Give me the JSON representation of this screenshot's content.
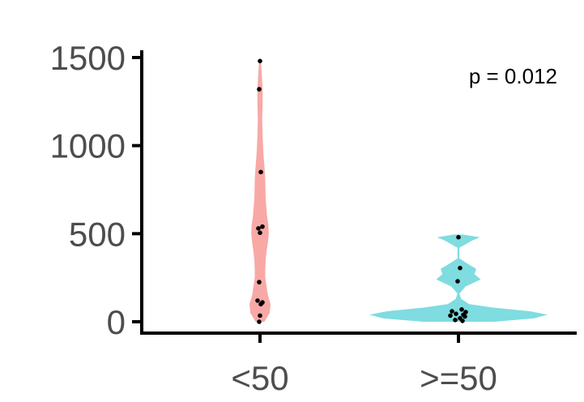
{
  "chart_data": {
    "type": "violin",
    "categories": [
      "<50",
      ">=50"
    ],
    "ylim": [
      -30,
      1560
    ],
    "yticks": [
      0,
      500,
      1000,
      1500
    ],
    "ytick_labels": [
      "0",
      "500",
      "1000",
      "1500"
    ],
    "annotation": "p = 0.012",
    "legend": "none",
    "grid": false,
    "series": [
      {
        "category": "<50",
        "color": "#f8a9a6",
        "points": [
          1480,
          1320,
          850,
          540,
          530,
          505,
          225,
          120,
          110,
          100,
          35,
          0
        ],
        "density_profile": [
          [
            0,
            0.1
          ],
          [
            50,
            0.22
          ],
          [
            100,
            0.24
          ],
          [
            150,
            0.18
          ],
          [
            200,
            0.15
          ],
          [
            250,
            0.12
          ],
          [
            300,
            0.12
          ],
          [
            350,
            0.13
          ],
          [
            400,
            0.15
          ],
          [
            450,
            0.18
          ],
          [
            500,
            0.2
          ],
          [
            550,
            0.19
          ],
          [
            600,
            0.16
          ],
          [
            700,
            0.13
          ],
          [
            800,
            0.12
          ],
          [
            850,
            0.11
          ],
          [
            950,
            0.08
          ],
          [
            1050,
            0.06
          ],
          [
            1150,
            0.05
          ],
          [
            1250,
            0.06
          ],
          [
            1320,
            0.06
          ],
          [
            1400,
            0.04
          ],
          [
            1480,
            0.02
          ]
        ]
      },
      {
        "category": ">=50",
        "color": "#7fdce0",
        "points": [
          480,
          305,
          230,
          70,
          60,
          55,
          45,
          40,
          35,
          30,
          20,
          10,
          5
        ],
        "density_profile": [
          [
            0,
            0.4
          ],
          [
            20,
            0.85
          ],
          [
            40,
            1.0
          ],
          [
            60,
            0.8
          ],
          [
            80,
            0.4
          ],
          [
            100,
            0.12
          ],
          [
            130,
            0.03
          ],
          [
            160,
            0.01
          ],
          [
            200,
            0.08
          ],
          [
            240,
            0.25
          ],
          [
            270,
            0.18
          ],
          [
            300,
            0.2
          ],
          [
            330,
            0.1
          ],
          [
            360,
            0.01
          ],
          [
            420,
            0.01
          ],
          [
            460,
            0.15
          ],
          [
            480,
            0.24
          ],
          [
            495,
            0.05
          ]
        ]
      }
    ]
  }
}
